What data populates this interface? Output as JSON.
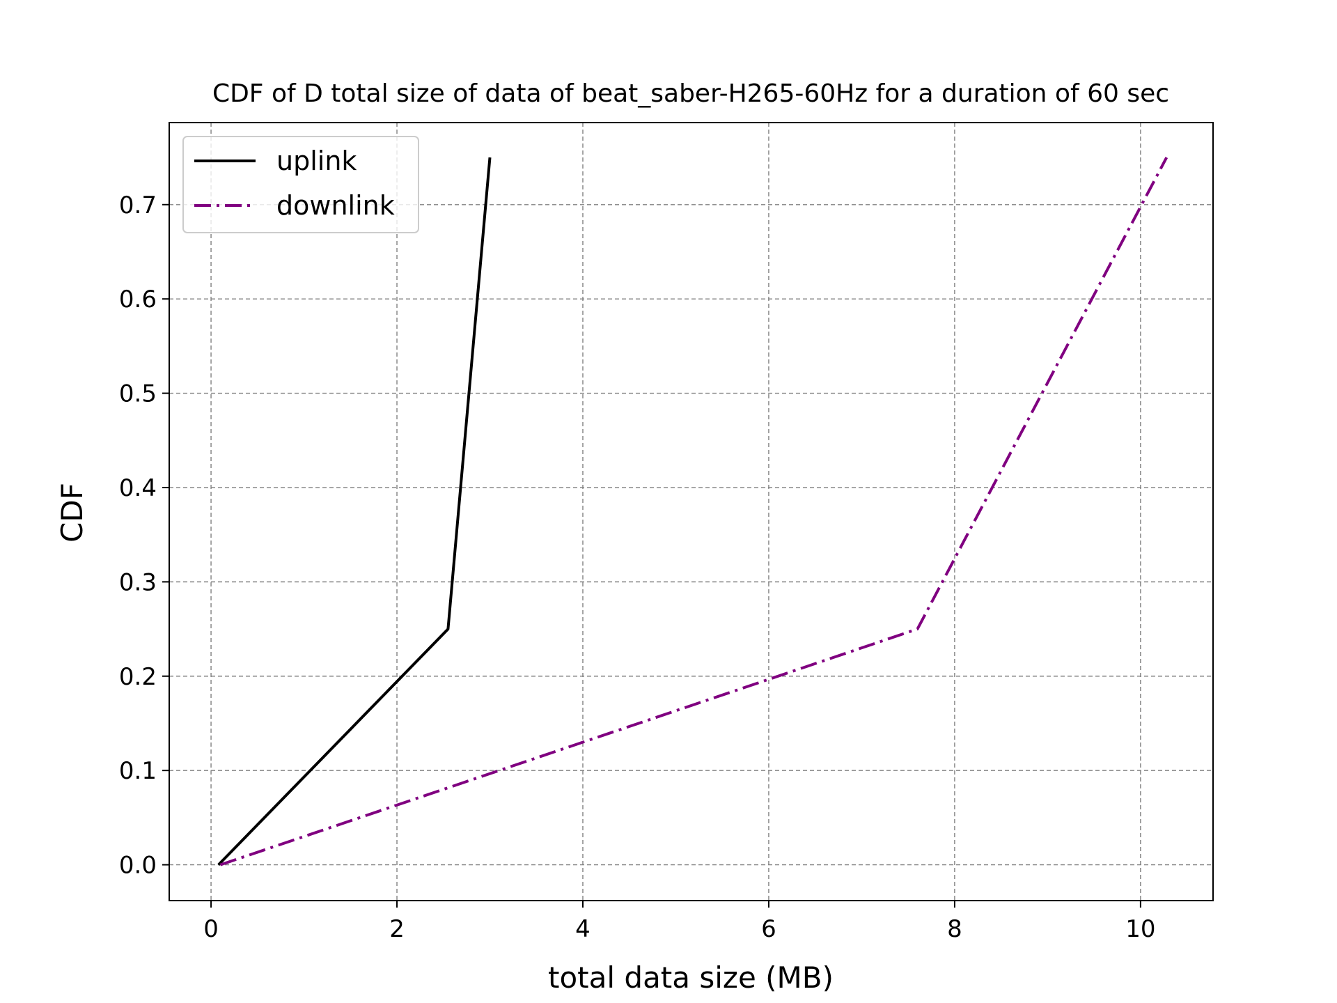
{
  "chart_data": {
    "type": "line",
    "title": "CDF of D total size of data of beat_saber-H265-60Hz for a duration of 60 sec",
    "xlabel": "total data size (MB)",
    "ylabel": "CDF",
    "xlim": [
      -0.45,
      10.78
    ],
    "ylim": [
      -0.038,
      0.787
    ],
    "xticks": [
      0,
      2,
      4,
      6,
      8,
      10
    ],
    "yticks": [
      0.0,
      0.1,
      0.2,
      0.3,
      0.4,
      0.5,
      0.6,
      0.7
    ],
    "xtick_labels": [
      "0",
      "2",
      "4",
      "6",
      "8",
      "10"
    ],
    "ytick_labels": [
      "0.0",
      "0.1",
      "0.2",
      "0.3",
      "0.4",
      "0.5",
      "0.6",
      "0.7"
    ],
    "grid": true,
    "legend_position": "upper left",
    "series": [
      {
        "name": "uplink",
        "color": "#000000",
        "style": "solid",
        "x": [
          0.08,
          2.55,
          3.0
        ],
        "y": [
          0.0,
          0.25,
          0.75
        ]
      },
      {
        "name": "downlink",
        "color": "#800080",
        "style": "dashdot",
        "x": [
          0.1,
          7.6,
          10.28
        ],
        "y": [
          0.0,
          0.25,
          0.75
        ]
      }
    ]
  }
}
